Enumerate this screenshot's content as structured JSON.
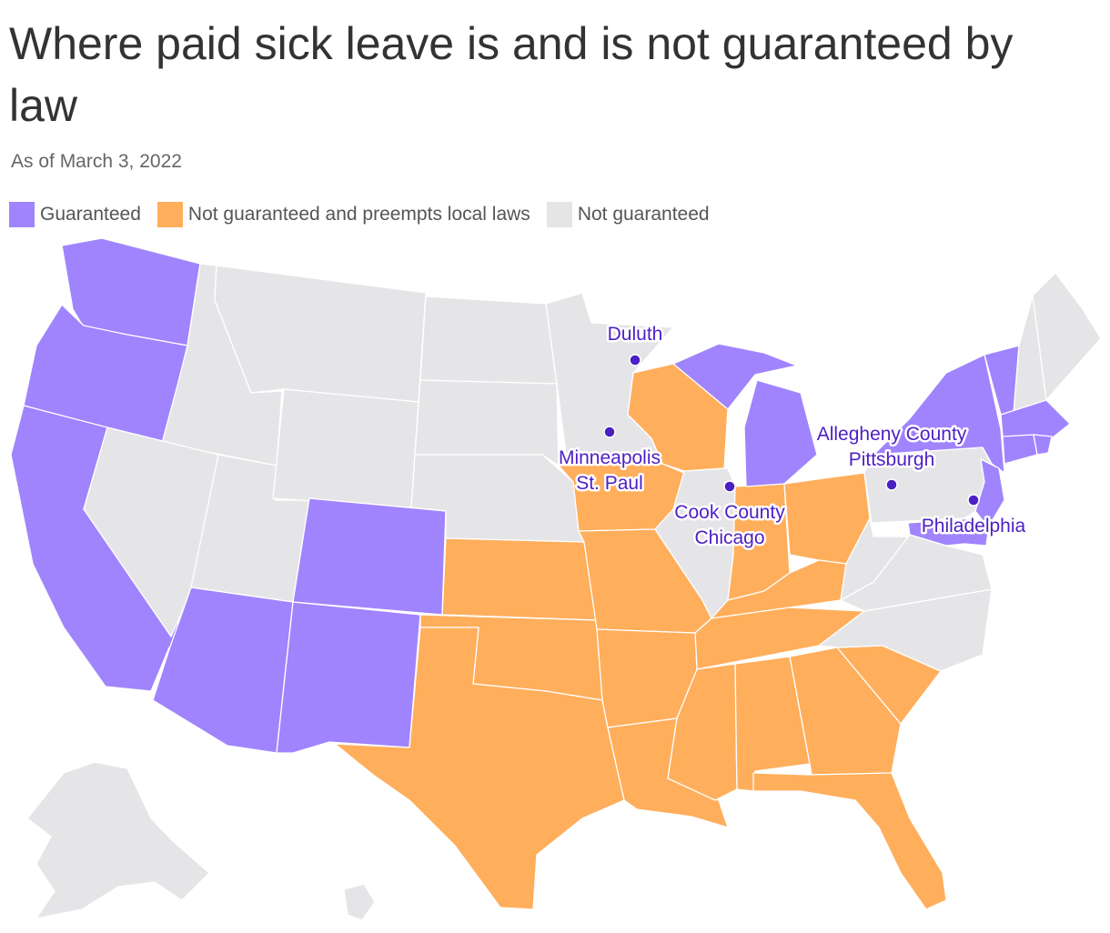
{
  "title": "Where paid sick leave is and is not guaranteed by law",
  "subtitle": "As of March 3, 2022",
  "colors": {
    "guaranteed": "#a084fd",
    "preempts": "#ffae5c",
    "not_guaranteed": "#e5e5e8",
    "city": "#4c1fc4"
  },
  "legend": [
    {
      "label": "Guaranteed",
      "key": "guaranteed"
    },
    {
      "label": "Not guaranteed and preempts local laws",
      "key": "preempts"
    },
    {
      "label": "Not guaranteed",
      "key": "not_guaranteed"
    }
  ],
  "states": {
    "guaranteed": [
      "Washington",
      "Oregon",
      "California",
      "Arizona",
      "Colorado",
      "New Mexico",
      "Michigan",
      "New York",
      "Vermont",
      "Massachusetts",
      "Connecticut",
      "Rhode Island",
      "New Jersey",
      "Maryland"
    ],
    "preempts": [
      "Wisconsin",
      "Iowa",
      "Kansas",
      "Oklahoma",
      "Texas",
      "Missouri",
      "Arkansas",
      "Louisiana",
      "Mississippi",
      "Alabama",
      "Georgia",
      "Florida",
      "South Carolina",
      "Tennessee",
      "Kentucky",
      "Indiana",
      "Ohio"
    ],
    "not_guaranteed": [
      "Idaho",
      "Montana",
      "Nevada",
      "Utah",
      "Wyoming",
      "North Dakota",
      "South Dakota",
      "Nebraska",
      "Minnesota",
      "Illinois",
      "West Virginia",
      "Virginia",
      "North Carolina",
      "Pennsylvania",
      "New Hampshire",
      "Maine",
      "Alaska",
      "Hawaii"
    ]
  },
  "cities": [
    {
      "name": "duluth",
      "lines": [
        "Duluth"
      ]
    },
    {
      "name": "minneapolis-st-paul",
      "lines": [
        "Minneapolis",
        "St. Paul"
      ]
    },
    {
      "name": "cook-county-chicago",
      "lines": [
        "Cook County",
        "Chicago"
      ]
    },
    {
      "name": "allegheny-county-pittsburgh",
      "lines": [
        "Allegheny County",
        "Pittsburgh"
      ]
    },
    {
      "name": "philadelphia",
      "lines": [
        "Philadelphia"
      ]
    }
  ]
}
